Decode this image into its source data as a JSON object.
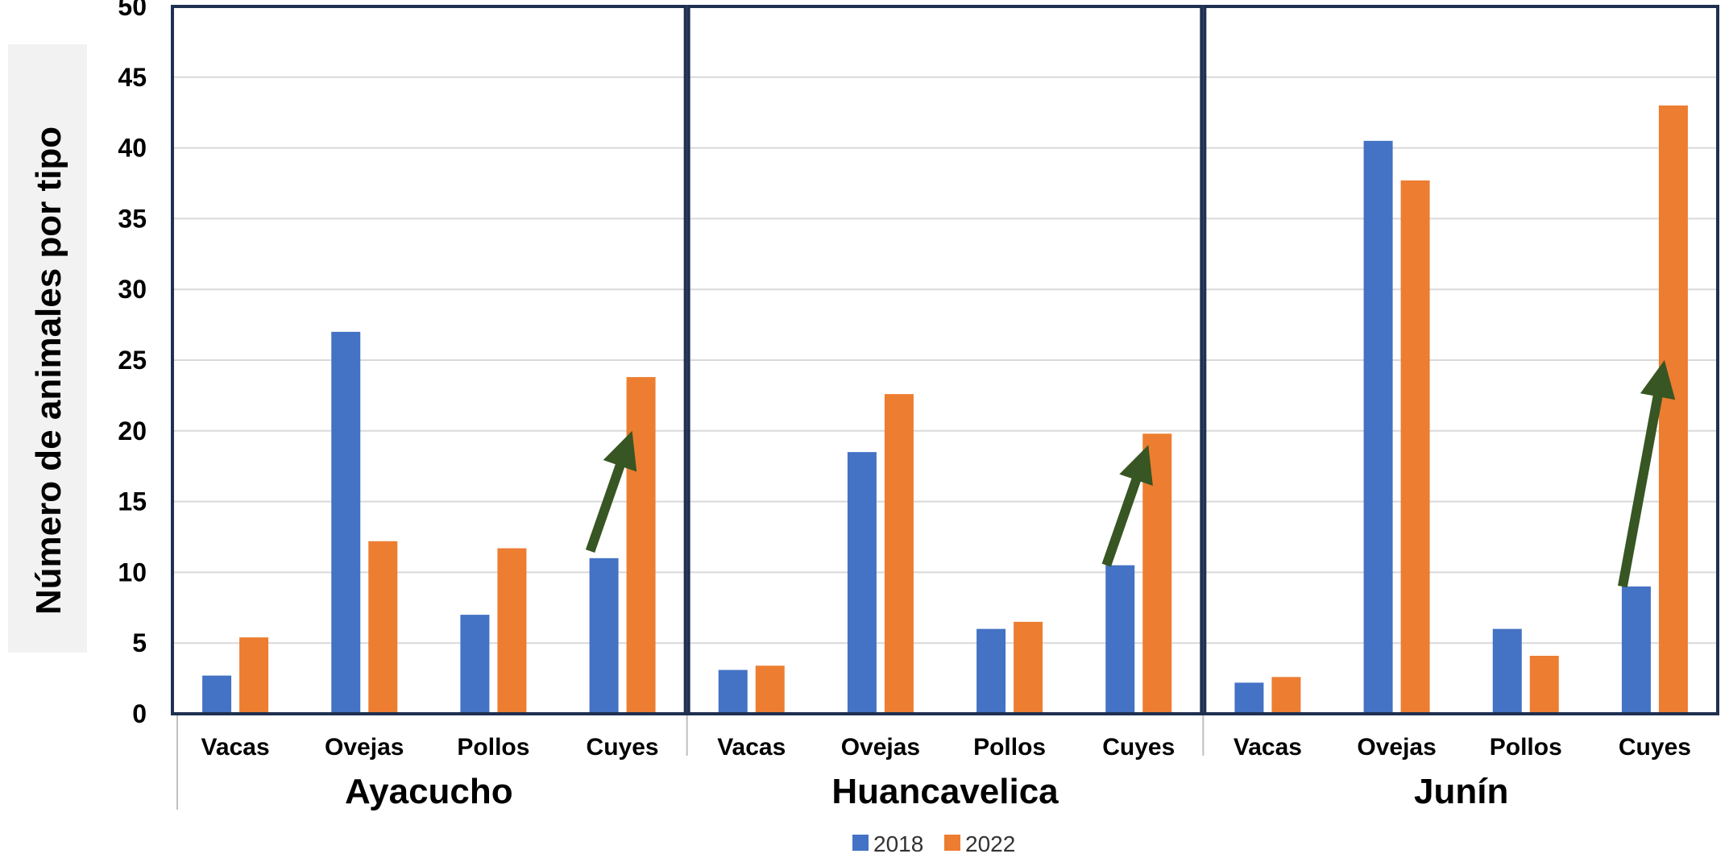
{
  "chart_data": {
    "type": "bar",
    "ylabel": "Número de animales por tipo",
    "ylim": [
      0,
      50
    ],
    "yticks": [
      "0",
      "5",
      "10",
      "15",
      "20",
      "25",
      "30",
      "35",
      "40",
      "45",
      "50"
    ],
    "grid": true,
    "legend_position": "bottom-center",
    "groups": [
      {
        "name": "Ayacucho",
        "categories": [
          "Vacas",
          "Ovejas",
          "Pollos",
          "Cuyes"
        ]
      },
      {
        "name": "Huancavelica",
        "categories": [
          "Vacas",
          "Ovejas",
          "Pollos",
          "Cuyes"
        ]
      },
      {
        "name": "Junín",
        "categories": [
          "Vacas",
          "Ovejas",
          "Pollos",
          "Cuyes"
        ]
      }
    ],
    "series": [
      {
        "name": "2018",
        "color": "#4472c4",
        "values": [
          2.7,
          27.0,
          7.0,
          11.0,
          3.1,
          18.5,
          6.0,
          10.5,
          2.2,
          40.5,
          6.0,
          9.0
        ]
      },
      {
        "name": "2022",
        "color": "#ed7d31",
        "values": [
          5.4,
          12.2,
          11.7,
          23.8,
          3.4,
          22.6,
          6.5,
          19.8,
          2.6,
          37.7,
          4.1,
          43.0
        ]
      }
    ],
    "annotations": [
      {
        "type": "arrow",
        "group": "Ayacucho",
        "category": "Cuyes",
        "from": 11.5,
        "to": 20,
        "color": "#375623"
      },
      {
        "type": "arrow",
        "group": "Huancavelica",
        "category": "Cuyes",
        "from": 10.5,
        "to": 19,
        "color": "#375623"
      },
      {
        "type": "arrow",
        "group": "Junín",
        "category": "Cuyes",
        "from": 9,
        "to": 25,
        "color": "#375623"
      }
    ]
  }
}
